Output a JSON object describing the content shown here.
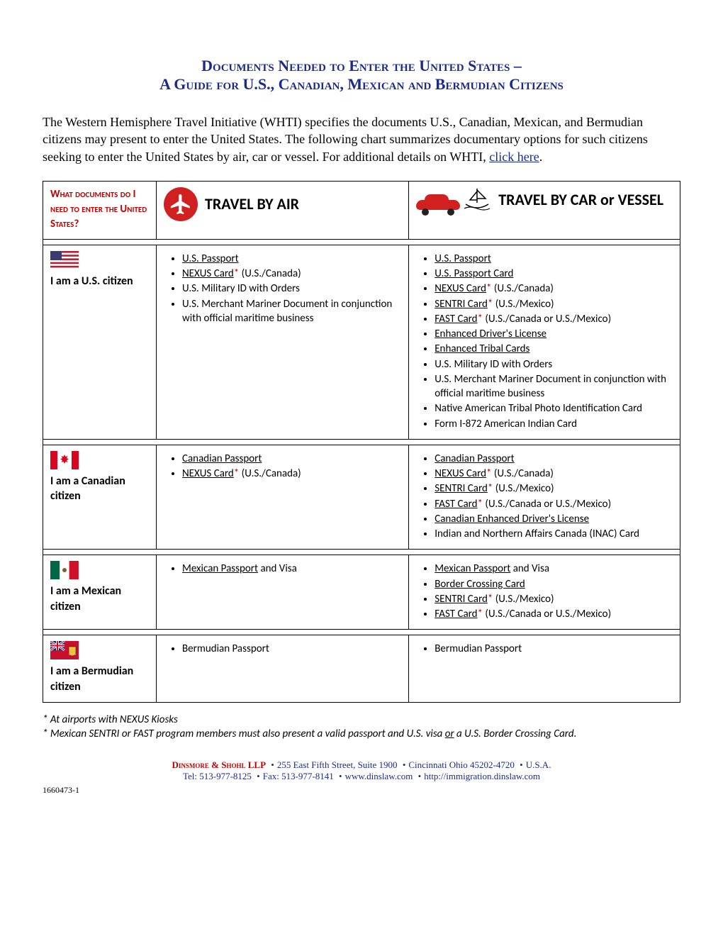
{
  "title": {
    "line1": "Documents Needed to Enter the United States –",
    "line2": "A Guide for U.S., Canadian, Mexican and Bermudian Citizens"
  },
  "intro": {
    "text": "The Western Hemisphere Travel Initiative (WHTI) specifies the documents U.S., Canadian, Mexican, and Bermudian citizens may present to enter the United States.  The following chart summarizes documentary options for such citizens seeking to enter the United States by air, car or vessel.  For additional details on WHTI, ",
    "link_text": "click here",
    "after": "."
  },
  "headers": {
    "question": "What documents do I need to enter the United States?",
    "air": "TRAVEL BY AIR",
    "car": "TRAVEL BY CAR or VESSEL"
  },
  "rows": {
    "us": {
      "label": "I am a U.S. citizen",
      "air": [
        {
          "text": "U.S. Passport",
          "u": true
        },
        {
          "text": "NEXUS Card",
          "u": true,
          "star": true,
          "suffix": " (U.S./Canada)"
        },
        {
          "text": "U.S. Military ID with Orders"
        },
        {
          "text": "U.S. Merchant Mariner Document in conjunction with official maritime business"
        }
      ],
      "car": [
        {
          "text": "U.S. Passport",
          "u": true
        },
        {
          "text": "U.S. Passport Card",
          "u": true
        },
        {
          "text": "NEXUS Card",
          "u": true,
          "star": true,
          "suffix": " (U.S./Canada)"
        },
        {
          "text": "SENTRI Card",
          "u": true,
          "star": true,
          "suffix": " (U.S./Mexico)"
        },
        {
          "text": "FAST Card",
          "u": true,
          "star": true,
          "suffix": " (U.S./Canada or U.S./Mexico)"
        },
        {
          "text": "Enhanced Driver's License",
          "u": true
        },
        {
          "text": "Enhanced Tribal Cards",
          "u": true
        },
        {
          "text": "U.S. Military ID with Orders"
        },
        {
          "text": "U.S. Merchant Mariner Document in conjunction with official maritime business"
        },
        {
          "text": "Native American Tribal Photo Identification Card"
        },
        {
          "text": "Form I-872 American Indian Card"
        }
      ]
    },
    "ca": {
      "label": "I am a Canadian citizen",
      "air": [
        {
          "text": "Canadian Passport",
          "u": true
        },
        {
          "text": "NEXUS Card",
          "u": true,
          "star": true,
          "suffix": "  (U.S./Canada)"
        }
      ],
      "car": [
        {
          "text": "Canadian Passport",
          "u": true
        },
        {
          "text": "NEXUS Card",
          "u": true,
          "star": true,
          "suffix": " (U.S./Canada)"
        },
        {
          "text": "SENTRI Card",
          "u": true,
          "star": true,
          "suffix": " (U.S./Mexico)"
        },
        {
          "text": "FAST Card",
          "u": true,
          "star": true,
          "suffix": " (U.S./Canada or U.S./Mexico)"
        },
        {
          "text": "Canadian Enhanced Driver's License",
          "u": true
        },
        {
          "text": "Indian and Northern Affairs Canada (INAC) Card"
        }
      ]
    },
    "mx": {
      "label": "I am a Mexican citizen",
      "air": [
        {
          "text": "Mexican Passport",
          "u": true,
          "suffix": " and Visa"
        }
      ],
      "car": [
        {
          "text": "Mexican Passport",
          "u": true,
          "suffix": " and Visa"
        },
        {
          "text": "Border Crossing Card",
          "u": true
        },
        {
          "text": "SENTRI Card",
          "u": true,
          "star": true,
          "suffix": " (U.S./Mexico)"
        },
        {
          "text": "FAST Card",
          "u": true,
          "star": true,
          "suffix": " (U.S./Canada or U.S./Mexico)"
        }
      ]
    },
    "bm": {
      "label": "I am a Bermudian citizen",
      "air": [
        {
          "text": "Bermudian Passport"
        }
      ],
      "car": [
        {
          "text": "Bermudian Passport"
        }
      ]
    }
  },
  "footnotes": {
    "f1": "* At airports with NEXUS Kiosks",
    "f2_a": "* Mexican SENTRI or FAST program members must also present a valid passport and U.S. visa ",
    "f2_or": "or",
    "f2_b": " a U.S. Border Crossing Card."
  },
  "footer": {
    "firm": "Dinsmore & Shohl LLP",
    "addr": "255 East Fifth Street, Suite 1900",
    "city": "Cincinnati Ohio 45202-4720",
    "country": "U.S.A.",
    "tel": "Tel:  513-977-8125",
    "fax": "Fax:  513-977-8141",
    "web1": "www.dinslaw.com",
    "web2": "http://immigration.dinslaw.com"
  },
  "docnum": "1660473-1",
  "colors": {
    "title": "#1a2a8a",
    "accent_red": "#c00000",
    "car_red": "#d02020"
  }
}
